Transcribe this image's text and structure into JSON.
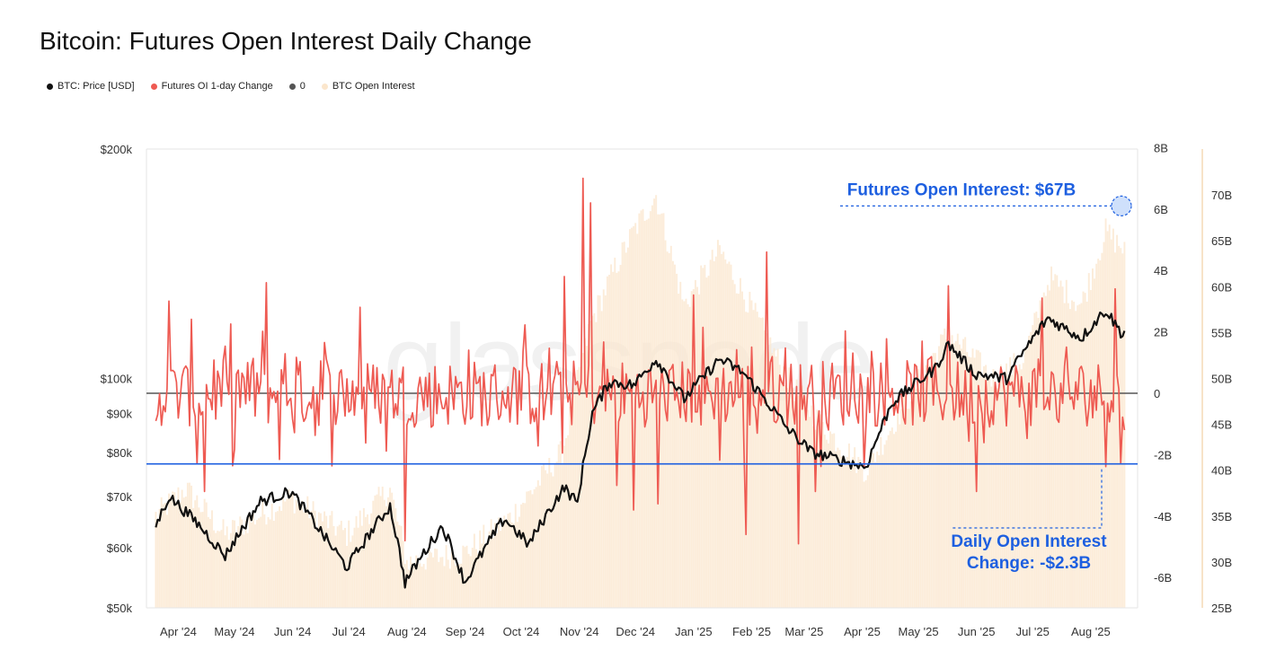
{
  "chart_data": {
    "type": "line",
    "title": "Bitcoin: Futures Open Interest Daily Change",
    "watermark": "glassnode",
    "colors": {
      "price": "#111111",
      "oi_change": "#ee5a52",
      "zero": "#555555",
      "open_interest": "#fbe6cc",
      "annotation": "#1d5fe0"
    },
    "legend": [
      {
        "label": "BTC: Price [USD]",
        "color": "#111111"
      },
      {
        "label": "Futures OI 1-day Change",
        "color": "#ee5a52"
      },
      {
        "label": "0",
        "color": "#555555"
      },
      {
        "label": "BTC Open Interest",
        "color": "#fbe6cc"
      }
    ],
    "x_ticks": [
      "Apr '24",
      "May '24",
      "Jun '24",
      "Jul '24",
      "Aug '24",
      "Sep '24",
      "Oct '24",
      "Nov '24",
      "Dec '24",
      "Jan '25",
      "Feb '25",
      "Mar '25",
      "Apr '25",
      "May '25",
      "Jun '25",
      "Jul '25",
      "Aug '25"
    ],
    "y_left": {
      "scale": "log",
      "range": [
        50000,
        200000
      ],
      "ticks": [
        "$200k",
        "$100k",
        "$90k",
        "$80k",
        "$70k",
        "$60k",
        "$50k"
      ],
      "tick_values": [
        200000,
        100000,
        90000,
        80000,
        70000,
        60000,
        50000
      ]
    },
    "y_right1": {
      "range": [
        -7,
        8
      ],
      "ticks": [
        "8B",
        "6B",
        "4B",
        "2B",
        "0",
        "-2B",
        "-4B",
        "-6B"
      ],
      "tick_values": [
        8,
        6,
        4,
        2,
        0,
        -2,
        -4,
        -6
      ]
    },
    "y_right2": {
      "range": [
        25,
        75
      ],
      "ticks": [
        "70B",
        "65B",
        "60B",
        "55B",
        "50B",
        "45B",
        "40B",
        "35B",
        "30B",
        "25B"
      ],
      "tick_values": [
        70,
        65,
        60,
        55,
        50,
        45,
        40,
        35,
        30,
        25
      ]
    },
    "price_monthly": [
      [
        "2024-03-25",
        64000
      ],
      [
        "2024-04-01",
        70000
      ],
      [
        "2024-04-15",
        65000
      ],
      [
        "2024-05-01",
        58500
      ],
      [
        "2024-05-20",
        69000
      ],
      [
        "2024-06-05",
        71000
      ],
      [
        "2024-06-25",
        61000
      ],
      [
        "2024-07-05",
        56500
      ],
      [
        "2024-07-28",
        68000
      ],
      [
        "2024-08-05",
        54000
      ],
      [
        "2024-08-25",
        64000
      ],
      [
        "2024-09-06",
        54000
      ],
      [
        "2024-09-27",
        65500
      ],
      [
        "2024-10-10",
        60500
      ],
      [
        "2024-10-29",
        72000
      ],
      [
        "2024-11-05",
        68500
      ],
      [
        "2024-11-13",
        90000
      ],
      [
        "2024-11-22",
        99000
      ],
      [
        "2024-12-05",
        98000
      ],
      [
        "2024-12-17",
        106000
      ],
      [
        "2025-01-01",
        94000
      ],
      [
        "2025-01-20",
        106000
      ],
      [
        "2025-02-01",
        102000
      ],
      [
        "2025-02-25",
        86000
      ],
      [
        "2025-03-10",
        80000
      ],
      [
        "2025-04-08",
        76500
      ],
      [
        "2025-04-22",
        93000
      ],
      [
        "2025-05-15",
        103000
      ],
      [
        "2025-05-22",
        111000
      ],
      [
        "2025-06-05",
        101500
      ],
      [
        "2025-06-22",
        100000
      ],
      [
        "2025-07-14",
        120000
      ],
      [
        "2025-08-01",
        113000
      ],
      [
        "2025-08-14",
        123000
      ],
      [
        "2025-08-22",
        115000
      ]
    ],
    "oi_change_summary": {
      "unit": "B USD",
      "min": -5.0,
      "max": 7.0
    },
    "open_interest_summary": {
      "unit": "B USD",
      "start": 35,
      "peak_dec_2024": 70,
      "mid_2025": 58,
      "end": 67
    },
    "annotations": [
      {
        "text": "Futures Open Interest: $67B"
      },
      {
        "text_line1": "Daily Open Interest",
        "text_line2": "Change: -$2.3B",
        "value": -2.3
      }
    ]
  }
}
